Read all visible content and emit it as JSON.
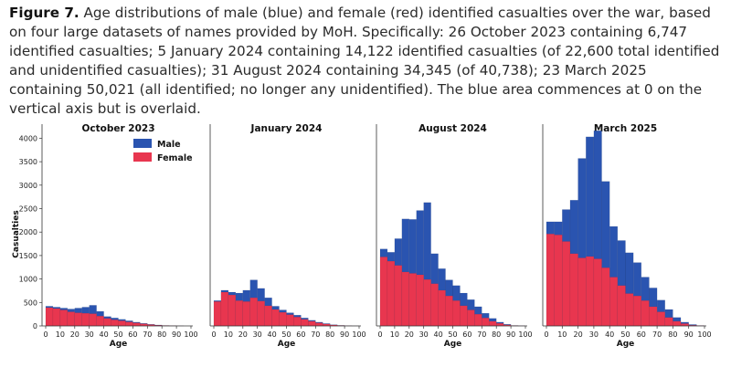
{
  "caption": {
    "label": "Figure 7.",
    "text": "Age distributions of male (blue) and female (red) identified casualties over the war, based on four large datasets of names provided by MoH. Specifically: 26 October 2023 containing 6,747 identified casualties; 5 January 2024 containing 14,122 identified casualties (of 22,600 total identified and unidentified casualties); 31 August 2024 containing 34,345 (of 40,738); 23 March 2025 containing 50,021 (all identified; no longer any unidentified). The blue area commences at 0 on the vertical axis but is overlaid."
  },
  "colors": {
    "male": "#2a54b0",
    "female": "#e8364f",
    "axis": "#333333"
  },
  "chart_data": [
    {
      "type": "bar",
      "title": "October 2023",
      "xlabel": "Age",
      "ylabel": "Casualties",
      "bin_width": 5,
      "bin_starts": [
        0,
        5,
        10,
        15,
        20,
        25,
        30,
        35,
        40,
        45,
        50,
        55,
        60,
        65,
        70,
        75,
        80,
        85,
        90,
        95
      ],
      "xlim": [
        0,
        100
      ],
      "ylim": [
        0,
        4300
      ],
      "xticks": [
        0,
        10,
        20,
        30,
        40,
        50,
        60,
        70,
        80,
        90,
        100
      ],
      "yticks": [
        0,
        500,
        1000,
        1500,
        2000,
        2500,
        3000,
        3500,
        4000
      ],
      "legend": {
        "position": "top-right",
        "entries": [
          "Male",
          "Female"
        ]
      },
      "series": [
        {
          "name": "Male",
          "values": [
            420,
            400,
            380,
            360,
            380,
            400,
            440,
            310,
            200,
            170,
            140,
            110,
            80,
            55,
            35,
            20,
            10,
            5,
            2,
            0
          ]
        },
        {
          "name": "Female",
          "values": [
            390,
            370,
            340,
            300,
            280,
            270,
            260,
            210,
            160,
            130,
            110,
            85,
            65,
            45,
            28,
            15,
            8,
            4,
            1,
            0
          ]
        }
      ]
    },
    {
      "type": "bar",
      "title": "January 2024",
      "xlabel": "Age",
      "bin_width": 5,
      "bin_starts": [
        0,
        5,
        10,
        15,
        20,
        25,
        30,
        35,
        40,
        45,
        50,
        55,
        60,
        65,
        70,
        75,
        80,
        85,
        90,
        95
      ],
      "xlim": [
        0,
        100
      ],
      "ylim": [
        0,
        4300
      ],
      "xticks": [
        0,
        10,
        20,
        30,
        40,
        50,
        60,
        70,
        80,
        90,
        100
      ],
      "series": [
        {
          "name": "Male",
          "values": [
            540,
            760,
            720,
            700,
            760,
            980,
            800,
            600,
            420,
            340,
            280,
            230,
            170,
            120,
            80,
            50,
            25,
            12,
            4,
            1
          ]
        },
        {
          "name": "Female",
          "values": [
            520,
            720,
            660,
            540,
            520,
            600,
            530,
            430,
            350,
            290,
            240,
            190,
            140,
            100,
            65,
            40,
            20,
            10,
            3,
            1
          ]
        }
      ]
    },
    {
      "type": "bar",
      "title": "August 2024",
      "xlabel": "Age",
      "bin_width": 5,
      "bin_starts": [
        0,
        5,
        10,
        15,
        20,
        25,
        30,
        35,
        40,
        45,
        50,
        55,
        60,
        65,
        70,
        75,
        80,
        85,
        90,
        95
      ],
      "xlim": [
        0,
        100
      ],
      "ylim": [
        0,
        4300
      ],
      "xticks": [
        0,
        10,
        20,
        30,
        40,
        50,
        60,
        70,
        80,
        90,
        100
      ],
      "series": [
        {
          "name": "Male",
          "values": [
            1640,
            1570,
            1860,
            2280,
            2270,
            2460,
            2630,
            1540,
            1220,
            980,
            860,
            700,
            560,
            410,
            270,
            160,
            80,
            35,
            10,
            3
          ]
        },
        {
          "name": "Female",
          "values": [
            1470,
            1380,
            1290,
            1150,
            1120,
            1090,
            990,
            900,
            760,
            640,
            540,
            430,
            340,
            250,
            170,
            100,
            55,
            22,
            6,
            2
          ]
        }
      ]
    },
    {
      "type": "bar",
      "title": "March 2025",
      "xlabel": "Age",
      "bin_width": 5,
      "bin_starts": [
        0,
        5,
        10,
        15,
        20,
        25,
        30,
        35,
        40,
        45,
        50,
        55,
        60,
        65,
        70,
        75,
        80,
        85,
        90,
        95
      ],
      "xlim": [
        0,
        100
      ],
      "ylim": [
        0,
        4300
      ],
      "xticks": [
        0,
        10,
        20,
        30,
        40,
        50,
        60,
        70,
        80,
        90,
        100
      ],
      "series": [
        {
          "name": "Male",
          "values": [
            2220,
            2220,
            2480,
            2680,
            3570,
            4030,
            4160,
            3080,
            2120,
            1820,
            1560,
            1350,
            1040,
            810,
            550,
            350,
            180,
            80,
            30,
            8
          ]
        },
        {
          "name": "Female",
          "values": [
            1960,
            1940,
            1800,
            1540,
            1450,
            1480,
            1430,
            1240,
            1040,
            860,
            690,
            640,
            540,
            410,
            300,
            180,
            100,
            50,
            15,
            5
          ]
        }
      ]
    }
  ]
}
